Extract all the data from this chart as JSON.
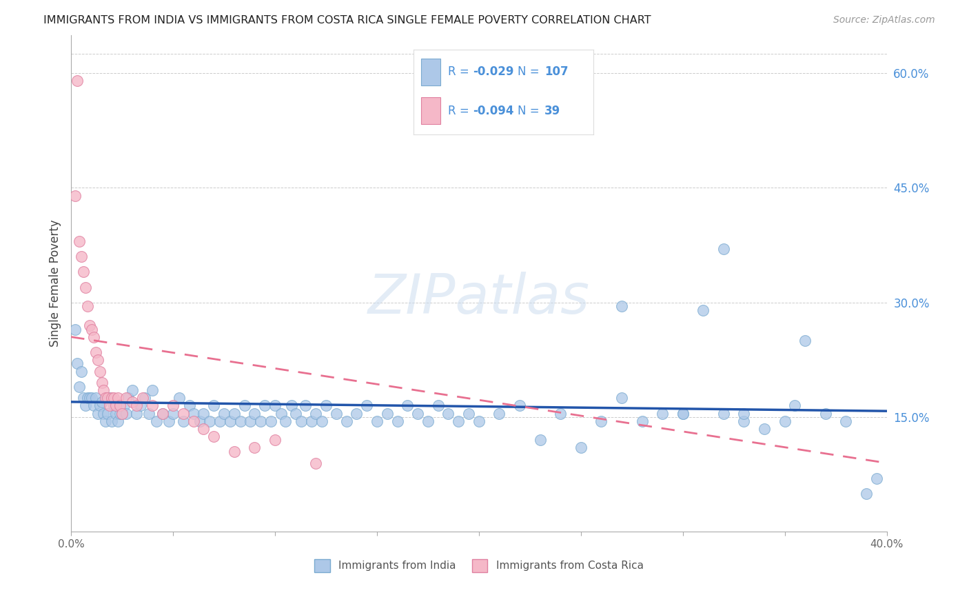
{
  "title": "IMMIGRANTS FROM INDIA VS IMMIGRANTS FROM COSTA RICA SINGLE FEMALE POVERTY CORRELATION CHART",
  "source": "Source: ZipAtlas.com",
  "ylabel": "Single Female Poverty",
  "xlim": [
    0.0,
    0.4
  ],
  "ylim": [
    0.0,
    0.65
  ],
  "yticks_right": [
    0.15,
    0.3,
    0.45,
    0.6
  ],
  "ytick_labels_right": [
    "15.0%",
    "30.0%",
    "45.0%",
    "60.0%"
  ],
  "india_R": "-0.029",
  "india_N": "107",
  "costa_rica_R": "-0.094",
  "costa_rica_N": "39",
  "india_color": "#adc8e8",
  "india_edge": "#7aaad0",
  "costa_rica_color": "#f5b8c8",
  "costa_rica_edge": "#e080a0",
  "india_line_color": "#2255aa",
  "costa_rica_line_color": "#e87090",
  "watermark_text": "ZIPatlas",
  "background_color": "#ffffff",
  "grid_color": "#cccccc",
  "text_blue": "#4a90d9",
  "legend_border": "#dddddd",
  "india_x": [
    0.002,
    0.003,
    0.004,
    0.005,
    0.006,
    0.007,
    0.008,
    0.009,
    0.01,
    0.011,
    0.012,
    0.013,
    0.014,
    0.015,
    0.016,
    0.017,
    0.018,
    0.019,
    0.02,
    0.021,
    0.022,
    0.023,
    0.024,
    0.025,
    0.026,
    0.027,
    0.028,
    0.03,
    0.032,
    0.034,
    0.036,
    0.038,
    0.04,
    0.042,
    0.045,
    0.048,
    0.05,
    0.053,
    0.055,
    0.058,
    0.06,
    0.063,
    0.065,
    0.068,
    0.07,
    0.073,
    0.075,
    0.078,
    0.08,
    0.083,
    0.085,
    0.088,
    0.09,
    0.093,
    0.095,
    0.098,
    0.1,
    0.103,
    0.105,
    0.108,
    0.11,
    0.113,
    0.115,
    0.118,
    0.12,
    0.123,
    0.125,
    0.13,
    0.135,
    0.14,
    0.145,
    0.15,
    0.155,
    0.16,
    0.165,
    0.17,
    0.175,
    0.18,
    0.185,
    0.19,
    0.195,
    0.2,
    0.21,
    0.22,
    0.23,
    0.24,
    0.25,
    0.26,
    0.27,
    0.28,
    0.29,
    0.3,
    0.31,
    0.32,
    0.33,
    0.34,
    0.35,
    0.36,
    0.37,
    0.38,
    0.39,
    0.395,
    0.32,
    0.27,
    0.3,
    0.33,
    0.355
  ],
  "india_y": [
    0.265,
    0.22,
    0.19,
    0.21,
    0.175,
    0.165,
    0.175,
    0.175,
    0.175,
    0.165,
    0.175,
    0.155,
    0.165,
    0.17,
    0.155,
    0.145,
    0.155,
    0.175,
    0.145,
    0.165,
    0.155,
    0.145,
    0.155,
    0.155,
    0.165,
    0.155,
    0.175,
    0.185,
    0.155,
    0.165,
    0.175,
    0.155,
    0.185,
    0.145,
    0.155,
    0.145,
    0.155,
    0.175,
    0.145,
    0.165,
    0.155,
    0.145,
    0.155,
    0.145,
    0.165,
    0.145,
    0.155,
    0.145,
    0.155,
    0.145,
    0.165,
    0.145,
    0.155,
    0.145,
    0.165,
    0.145,
    0.165,
    0.155,
    0.145,
    0.165,
    0.155,
    0.145,
    0.165,
    0.145,
    0.155,
    0.145,
    0.165,
    0.155,
    0.145,
    0.155,
    0.165,
    0.145,
    0.155,
    0.145,
    0.165,
    0.155,
    0.145,
    0.165,
    0.155,
    0.145,
    0.155,
    0.145,
    0.155,
    0.165,
    0.12,
    0.155,
    0.11,
    0.145,
    0.175,
    0.145,
    0.155,
    0.155,
    0.29,
    0.155,
    0.145,
    0.135,
    0.145,
    0.25,
    0.155,
    0.145,
    0.05,
    0.07,
    0.37,
    0.295,
    0.155,
    0.155,
    0.165
  ],
  "costa_rica_x": [
    0.002,
    0.003,
    0.004,
    0.005,
    0.006,
    0.007,
    0.008,
    0.009,
    0.01,
    0.011,
    0.012,
    0.013,
    0.014,
    0.015,
    0.016,
    0.017,
    0.018,
    0.019,
    0.02,
    0.021,
    0.022,
    0.023,
    0.024,
    0.025,
    0.027,
    0.03,
    0.032,
    0.035,
    0.04,
    0.045,
    0.05,
    0.055,
    0.06,
    0.065,
    0.07,
    0.08,
    0.09,
    0.1,
    0.12
  ],
  "costa_rica_y": [
    0.44,
    0.59,
    0.38,
    0.36,
    0.34,
    0.32,
    0.295,
    0.27,
    0.265,
    0.255,
    0.235,
    0.225,
    0.21,
    0.195,
    0.185,
    0.175,
    0.175,
    0.165,
    0.175,
    0.175,
    0.165,
    0.175,
    0.165,
    0.155,
    0.175,
    0.17,
    0.165,
    0.175,
    0.165,
    0.155,
    0.165,
    0.155,
    0.145,
    0.135,
    0.125,
    0.105,
    0.11,
    0.12,
    0.09
  ],
  "india_trend_x": [
    0.0,
    0.4
  ],
  "india_trend_y": [
    0.17,
    0.158
  ],
  "costa_trend_x": [
    0.0,
    0.4
  ],
  "costa_trend_y": [
    0.255,
    0.09
  ]
}
